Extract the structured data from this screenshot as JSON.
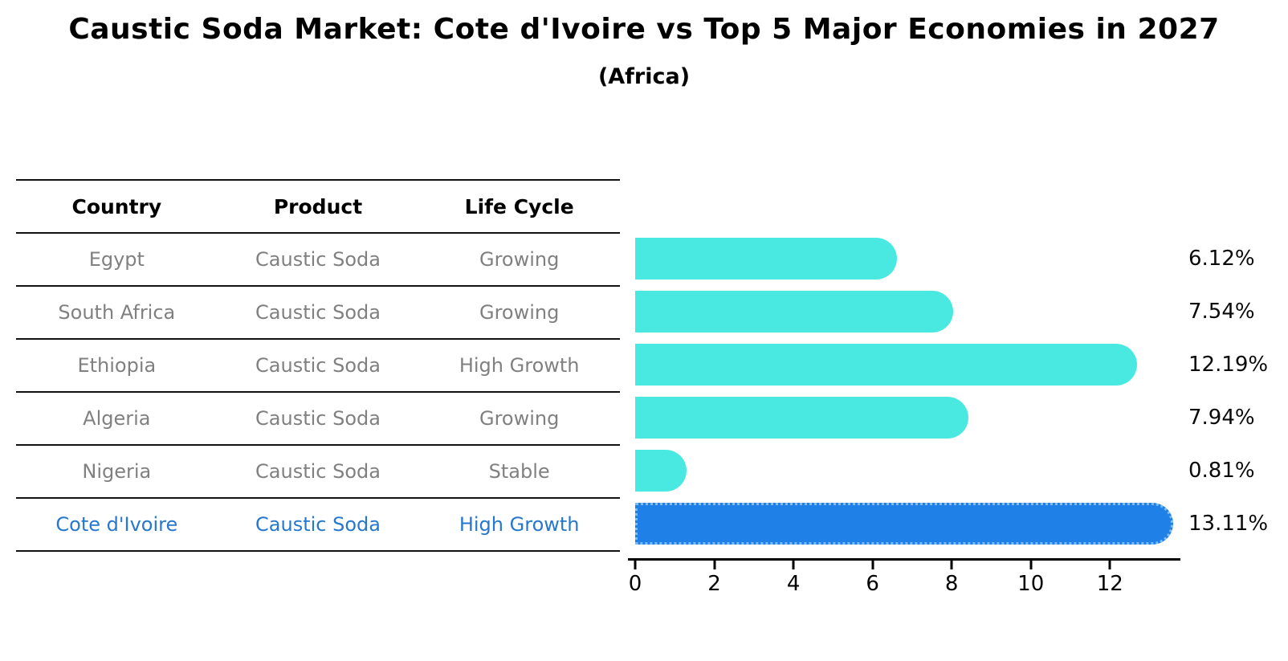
{
  "title": "Caustic Soda Market: Cote d'Ivoire vs Top 5 Major Economies in 2027",
  "subtitle": "(Africa)",
  "table": {
    "headers": [
      "Country",
      "Product",
      "Life Cycle"
    ],
    "rows": [
      {
        "country": "Egypt",
        "product": "Caustic Soda",
        "life_cycle": "Growing",
        "highlight": false
      },
      {
        "country": "South Africa",
        "product": "Caustic Soda",
        "life_cycle": "Growing",
        "highlight": false
      },
      {
        "country": "Ethiopia",
        "product": "Caustic Soda",
        "life_cycle": "High Growth",
        "highlight": false
      },
      {
        "country": "Algeria",
        "product": "Caustic Soda",
        "life_cycle": "Growing",
        "highlight": false
      },
      {
        "country": "Nigeria",
        "product": "Caustic Soda",
        "life_cycle": "Stable",
        "highlight": false
      },
      {
        "country": "Cote d'Ivoire",
        "product": "Caustic Soda",
        "life_cycle": "High Growth",
        "highlight": true
      }
    ]
  },
  "chart_data": {
    "type": "bar",
    "orientation": "horizontal",
    "title": "Caustic Soda Market: Cote d'Ivoire vs Top 5 Major Economies in 2027",
    "subtitle": "(Africa)",
    "categories": [
      "Egypt",
      "South Africa",
      "Ethiopia",
      "Algeria",
      "Nigeria",
      "Cote d'Ivoire"
    ],
    "values": [
      6.12,
      7.54,
      12.19,
      7.94,
      0.81,
      13.11
    ],
    "value_labels": [
      "6.12%",
      "7.54%",
      "12.19%",
      "7.94%",
      "0.81%",
      "13.11%"
    ],
    "unit": "%",
    "xlabel": "",
    "ylabel": "",
    "xticks": [
      0,
      2,
      4,
      6,
      8,
      10,
      12
    ],
    "xlim": [
      0,
      13.8
    ],
    "grid": false,
    "legend": "none",
    "highlight_index": 5,
    "colors": {
      "bar": "#49E9E2",
      "highlight_bar": "#1F81E8",
      "highlight_border": "#7BBCF5",
      "row_text": "#808080",
      "highlight_text": "#2578CE",
      "axis": "#000000"
    }
  }
}
